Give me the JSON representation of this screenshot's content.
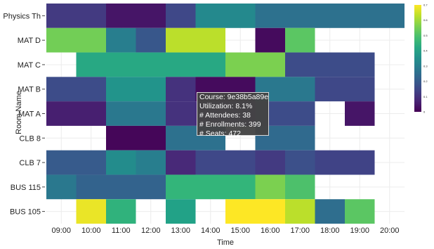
{
  "chart_data": {
    "type": "heatmap",
    "title": "",
    "xlabel": "Time",
    "ylabel": "Room Name",
    "x_categories": [
      "09:00",
      "10:00",
      "11:00",
      "12:00",
      "13:00",
      "14:00",
      "15:00",
      "16:00",
      "17:00",
      "18:00",
      "19:00",
      "20:00"
    ],
    "y_categories": [
      "Physics Th",
      "MAT D",
      "MAT C",
      "MAT B",
      "MAT A",
      "CLB 8",
      "CLB 7",
      "BUS 115",
      "BUS 105"
    ],
    "colorscale": "viridis",
    "zlim": [
      0,
      0.7
    ],
    "colorbar_ticks": [
      {
        "value": 0,
        "label": "0"
      },
      {
        "value": 0.1,
        "label": "0.1"
      },
      {
        "value": 0.2,
        "label": "0.2"
      },
      {
        "value": 0.3,
        "label": "0.3"
      },
      {
        "value": 0.4,
        "label": "0.4"
      },
      {
        "value": 0.5,
        "label": "0.5"
      },
      {
        "value": 0.6,
        "label": "0.6"
      },
      {
        "value": 0.7,
        "label": "0.7"
      }
    ],
    "cells": [
      {
        "room": "Physics Th",
        "start": 8.5,
        "end": 10.5,
        "value": 0.12
      },
      {
        "room": "Physics Th",
        "start": 10.5,
        "end": 12.5,
        "value": 0.04
      },
      {
        "room": "Physics Th",
        "start": 12.5,
        "end": 13.5,
        "value": 0.15
      },
      {
        "room": "Physics Th",
        "start": 13.5,
        "end": 15.5,
        "value": 0.33
      },
      {
        "room": "Physics Th",
        "start": 15.5,
        "end": 20.5,
        "value": 0.26
      },
      {
        "room": "MAT D",
        "start": 8.5,
        "end": 10.5,
        "value": 0.55
      },
      {
        "room": "MAT D",
        "start": 10.5,
        "end": 11.5,
        "value": 0.3
      },
      {
        "room": "MAT D",
        "start": 11.5,
        "end": 12.5,
        "value": 0.19
      },
      {
        "room": "MAT D",
        "start": 12.5,
        "end": 14.5,
        "value": 0.63
      },
      {
        "room": "MAT D",
        "start": 15.5,
        "end": 16.5,
        "value": 0.02
      },
      {
        "room": "MAT D",
        "start": 16.5,
        "end": 17.5,
        "value": 0.52
      },
      {
        "room": "MAT C",
        "start": 9.5,
        "end": 14.5,
        "value": 0.42
      },
      {
        "room": "MAT C",
        "start": 14.5,
        "end": 16.5,
        "value": 0.56
      },
      {
        "room": "MAT C",
        "start": 16.5,
        "end": 19.5,
        "value": 0.16
      },
      {
        "room": "MAT B",
        "start": 8.5,
        "end": 10.5,
        "value": 0.16
      },
      {
        "room": "MAT B",
        "start": 10.5,
        "end": 12.5,
        "value": 0.36
      },
      {
        "room": "MAT B",
        "start": 12.5,
        "end": 13.5,
        "value": 0.1
      },
      {
        "room": "MAT B",
        "start": 13.5,
        "end": 15.5,
        "value": 0.02
      },
      {
        "room": "MAT B",
        "start": 15.5,
        "end": 17.5,
        "value": 0.28
      },
      {
        "room": "MAT B",
        "start": 17.5,
        "end": 19.5,
        "value": 0.15
      },
      {
        "room": "MAT A",
        "start": 8.5,
        "end": 10.5,
        "value": 0.06
      },
      {
        "room": "MAT A",
        "start": 10.5,
        "end": 12.5,
        "value": 0.28
      },
      {
        "room": "MAT A",
        "start": 12.5,
        "end": 13.5,
        "value": 0.1
      },
      {
        "room": "MAT A",
        "start": 13.5,
        "end": 15.5,
        "value": 0.081
      },
      {
        "room": "MAT A",
        "start": 15.5,
        "end": 17.5,
        "value": 0.16
      },
      {
        "room": "MAT A",
        "start": 18.5,
        "end": 19.5,
        "value": 0.04
      },
      {
        "room": "CLB 8",
        "start": 10.5,
        "end": 12.5,
        "value": 0.01
      },
      {
        "room": "CLB 8",
        "start": 12.5,
        "end": 14.5,
        "value": 0.26
      },
      {
        "room": "CLB 8",
        "start": 15.5,
        "end": 17.5,
        "value": 0.24
      },
      {
        "room": "CLB 7",
        "start": 8.5,
        "end": 10.5,
        "value": 0.2
      },
      {
        "room": "CLB 7",
        "start": 10.5,
        "end": 11.5,
        "value": 0.34
      },
      {
        "room": "CLB 7",
        "start": 11.5,
        "end": 12.5,
        "value": 0.3
      },
      {
        "room": "CLB 7",
        "start": 12.5,
        "end": 13.5,
        "value": 0.08
      },
      {
        "room": "CLB 7",
        "start": 13.5,
        "end": 15.5,
        "value": 0.15
      },
      {
        "room": "CLB 7",
        "start": 15.5,
        "end": 16.5,
        "value": 0.12
      },
      {
        "room": "CLB 7",
        "start": 16.5,
        "end": 17.5,
        "value": 0.17
      },
      {
        "room": "CLB 7",
        "start": 17.5,
        "end": 19.5,
        "value": 0.14
      },
      {
        "room": "BUS 115",
        "start": 8.5,
        "end": 9.5,
        "value": 0.28
      },
      {
        "room": "BUS 115",
        "start": 9.5,
        "end": 12.5,
        "value": 0.22
      },
      {
        "room": "BUS 115",
        "start": 12.5,
        "end": 15.5,
        "value": 0.46
      },
      {
        "room": "BUS 115",
        "start": 15.5,
        "end": 16.5,
        "value": 0.56
      },
      {
        "room": "BUS 115",
        "start": 16.5,
        "end": 17.5,
        "value": 0.5
      },
      {
        "room": "BUS 105",
        "start": 9.5,
        "end": 10.5,
        "value": 0.68
      },
      {
        "room": "BUS 105",
        "start": 10.5,
        "end": 11.5,
        "value": 0.45
      },
      {
        "room": "BUS 105",
        "start": 12.5,
        "end": 13.5,
        "value": 0.4
      },
      {
        "room": "BUS 105",
        "start": 14.5,
        "end": 16.5,
        "value": 0.7
      },
      {
        "room": "BUS 105",
        "start": 16.5,
        "end": 17.5,
        "value": 0.63
      },
      {
        "room": "BUS 105",
        "start": 17.5,
        "end": 18.5,
        "value": 0.25
      },
      {
        "room": "BUS 105",
        "start": 18.5,
        "end": 19.5,
        "value": 0.52
      }
    ],
    "tooltip": {
      "course": "Course: 9e38b5a89e",
      "utilization": "Utilization: 8.1%",
      "attendees": "# Attendees: 38",
      "enrollments": "# Enrollments: 399",
      "seats": "# Seats: 472"
    }
  }
}
